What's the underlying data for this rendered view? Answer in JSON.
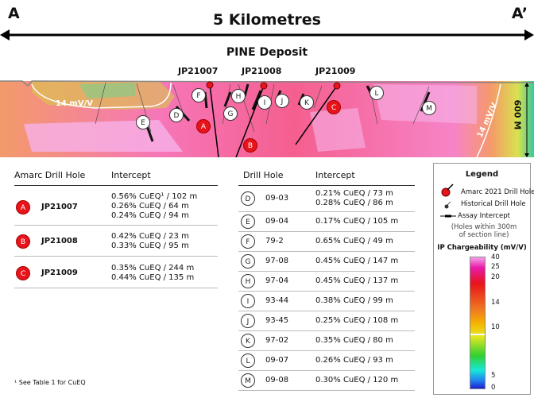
{
  "header": {
    "left_label": "A",
    "right_label": "A’",
    "distance": "5 Kilometres",
    "deposit": "PINE Deposit"
  },
  "section": {
    "holes_top": [
      "JP21007",
      "JP21008",
      "JP21009"
    ],
    "contour_labels": [
      "14 mV/V",
      "14 mV/V"
    ],
    "depth_label": "600 M",
    "markers": [
      "A",
      "B",
      "C",
      "D",
      "E",
      "F",
      "G",
      "H",
      "I",
      "J",
      "K",
      "L",
      "M"
    ]
  },
  "amarc_table": {
    "col1": "Amarc Drill Hole",
    "col2": "Intercept",
    "rows": [
      {
        "marker": "A",
        "hole": "JP21007",
        "intercepts": [
          "0.56% CuEQ¹ / 102 m",
          "0.26% CuEQ / 64 m",
          "0.24% CuEQ / 94 m"
        ]
      },
      {
        "marker": "B",
        "hole": "JP21008",
        "intercepts": [
          "0.42% CuEQ / 23 m",
          "0.33% CuEQ / 95 m"
        ]
      },
      {
        "marker": "C",
        "hole": "JP21009",
        "intercepts": [
          "0.35% CuEQ / 244 m",
          "0.44% CuEQ / 135 m"
        ]
      }
    ]
  },
  "footnote": "¹ See Table 1 for CuEQ",
  "hist_table": {
    "col1": "Drill Hole",
    "col2": "Intercept",
    "rows": [
      {
        "marker": "D",
        "hole": "09-03",
        "intercepts": [
          "0.21% CuEQ / 73 m",
          "0.28% CuEQ / 86 m"
        ]
      },
      {
        "marker": "E",
        "hole": "09-04",
        "intercepts": [
          "0.17% CuEQ / 105 m"
        ]
      },
      {
        "marker": "F",
        "hole": "79-2",
        "intercepts": [
          "0.65% CuEQ / 49 m"
        ]
      },
      {
        "marker": "G",
        "hole": "97-08",
        "intercepts": [
          "0.45% CuEQ / 147 m"
        ]
      },
      {
        "marker": "H",
        "hole": "97-04",
        "intercepts": [
          "0.45% CuEQ / 137 m"
        ]
      },
      {
        "marker": "I",
        "hole": "93-44",
        "intercepts": [
          "0.38% CuEQ / 99 m"
        ]
      },
      {
        "marker": "J",
        "hole": "93-45",
        "intercepts": [
          "0.25% CuEQ / 108 m"
        ]
      },
      {
        "marker": "K",
        "hole": "97-02",
        "intercepts": [
          "0.35% CuEQ / 80 m"
        ]
      },
      {
        "marker": "L",
        "hole": "09-07",
        "intercepts": [
          "0.26% CuEQ / 93 m"
        ]
      },
      {
        "marker": "M",
        "hole": "09-08",
        "intercepts": [
          "0.30% CuEQ / 120 m"
        ]
      }
    ]
  },
  "legend": {
    "title": "Legend",
    "amarc": "Amarc 2021 Drill Hole",
    "historical": "Historical Drill Hole",
    "assay": "Assay Intercept",
    "note": "(Holes within 300m of section line)",
    "scale_title": "IP Chargeability (mV/V)",
    "ticks": [
      "40",
      "25",
      "20",
      "14",
      "10",
      "5",
      "0"
    ]
  },
  "colors": {
    "amarc_red": "#e8141b"
  }
}
